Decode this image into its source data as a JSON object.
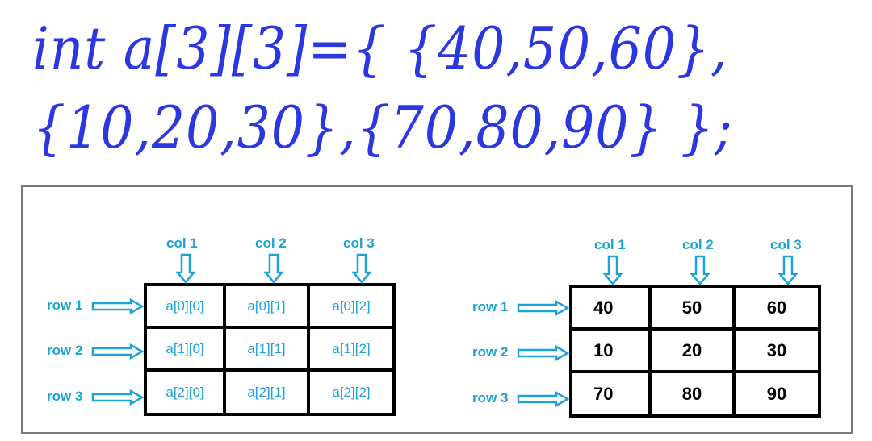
{
  "code": {
    "line1": "int a[3][3]={ {40,50,60},",
    "line2": "{10,20,30},{70,80,90} };"
  },
  "colors": {
    "code": "#2b37e0",
    "labels": "#1aa3d6",
    "arrow_fill": "#ffffff",
    "grid": "#000000"
  },
  "left_grid": {
    "col_labels": [
      "col 1",
      "col 2",
      "col 3"
    ],
    "row_labels": [
      "row 1",
      "row 2",
      "row 3"
    ],
    "cells": [
      [
        "a[0][0]",
        "a[0][1]",
        "a[0][2]"
      ],
      [
        "a[1][0]",
        "a[1][1]",
        "a[1][2]"
      ],
      [
        "a[2][0]",
        "a[2][1]",
        "a[2][2]"
      ]
    ]
  },
  "right_grid": {
    "col_labels": [
      "col 1",
      "col 2",
      "col 3"
    ],
    "row_labels": [
      "row 1",
      "row 2",
      "row 3"
    ],
    "cells": [
      [
        "40",
        "50",
        "60"
      ],
      [
        "10",
        "20",
        "30"
      ],
      [
        "70",
        "80",
        "90"
      ]
    ]
  }
}
